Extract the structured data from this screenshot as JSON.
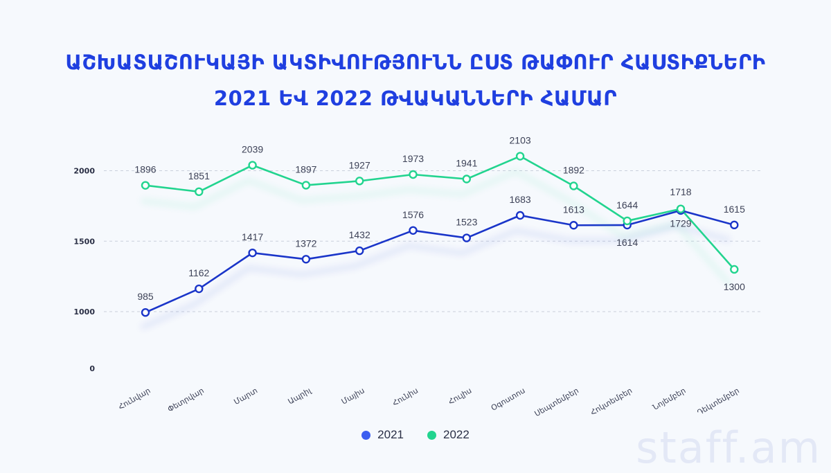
{
  "title": {
    "line1": "ԱՇԽԱՏԱՇՈՒԿԱՅԻ ԱԿՏԻՎՈՒԹՅՈՒՆՆ ԸՍՏ ԹԱՓՈՒՐ ՀԱՍՏԻՔՆԵՐԻ",
    "line2": "2021 ԵՎ 2022 ԹՎԱԿԱՆՆԵՐԻ ՀԱՄԱՐ"
  },
  "watermark": "staff.am",
  "chart_data": {
    "type": "line",
    "title": "ԱՇԽԱՏԱՇՈՒԿԱՅԻ ԱԿՏԻՎՈՒԹՅՈՒՆՆ ԸՍՏ ԹԱՓՈՒՐ ՀԱՍՏԻՔՆԵՐԻ 2021 ԵՎ 2022 ԹՎԱԿԱՆՆԵՐԻ ՀԱՄԱՐ",
    "categories": [
      "Հունվար",
      "Փետրվար",
      "Մարտ",
      "Ապրիլ",
      "Մայիս",
      "Հունիս",
      "Հուլիս",
      "Օգոստոս",
      "Սեպտեմբեր",
      "Հոկտեմբեր",
      "Նոյեմբեր",
      "Դեկտեմբեր"
    ],
    "y_ticks": [
      0,
      1000,
      1500,
      2000
    ],
    "grid": "horizontal dashed",
    "legend_position": "bottom",
    "series": [
      {
        "name": "2021",
        "color": "#1a35c9",
        "legend_color": "#3b5ef0",
        "values": [
          985,
          1162,
          1417,
          1372,
          1432,
          1576,
          1523,
          1683,
          1613,
          1614,
          1718,
          1615
        ]
      },
      {
        "name": "2022",
        "color": "#22d48f",
        "legend_color": "#22d48f",
        "values": [
          1896,
          1851,
          2039,
          1897,
          1927,
          1973,
          1941,
          2103,
          1892,
          1644,
          1729,
          1300
        ]
      }
    ]
  }
}
